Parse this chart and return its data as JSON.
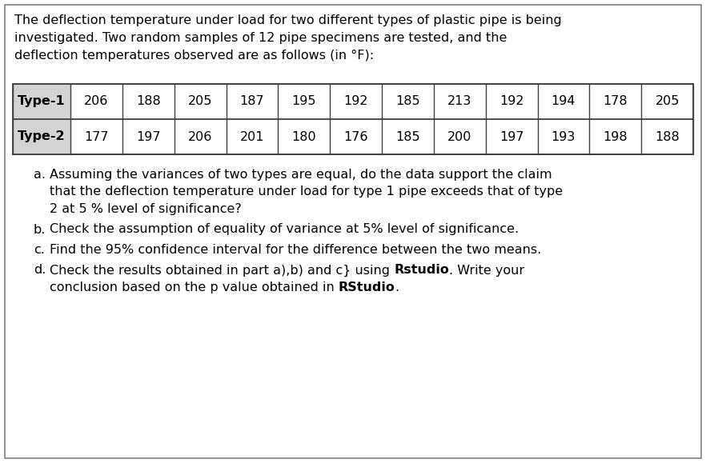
{
  "intro_lines": [
    "The deflection temperature under load for two different types of plastic pipe is being",
    "investigated. Two random samples of 12 pipe specimens are tested, and the",
    "deflection temperatures observed are as follows (in °F):"
  ],
  "type1_label": "Type-1",
  "type2_label": "Type-2",
  "type1_values": [
    206,
    188,
    205,
    187,
    195,
    192,
    185,
    213,
    192,
    194,
    178,
    205
  ],
  "type2_values": [
    177,
    197,
    206,
    201,
    180,
    176,
    185,
    200,
    197,
    193,
    198,
    188
  ],
  "header_bg": "#d3d3d3",
  "border_color": "#404040",
  "bg_color": "#ffffff",
  "outer_border_color": "#808080",
  "font_size": 11.5
}
